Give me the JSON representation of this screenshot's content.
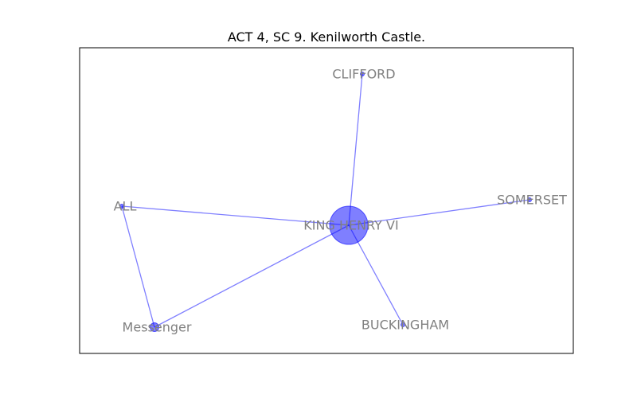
{
  "title": "ACT 4, SC 9. Kenilworth Castle.",
  "colors": {
    "node": "#0000ff",
    "edge": "#0000ff",
    "label": "#808080",
    "frame": "#000000"
  },
  "nodes": [
    {
      "id": "king",
      "label": "KING HENRY VI",
      "weight": 5
    },
    {
      "id": "clifford",
      "label": "CLIFFORD",
      "weight": 1
    },
    {
      "id": "somerset",
      "label": "SOMERSET",
      "weight": 1
    },
    {
      "id": "all",
      "label": "ALL",
      "weight": 1
    },
    {
      "id": "messenger",
      "label": "Messenger",
      "weight": 2
    },
    {
      "id": "buckingham",
      "label": "BUCKINGHAM",
      "weight": 1
    }
  ],
  "edges": [
    {
      "source": "king",
      "target": "clifford"
    },
    {
      "source": "king",
      "target": "somerset"
    },
    {
      "source": "king",
      "target": "all"
    },
    {
      "source": "king",
      "target": "messenger"
    },
    {
      "source": "king",
      "target": "buckingham"
    },
    {
      "source": "all",
      "target": "messenger"
    }
  ]
}
